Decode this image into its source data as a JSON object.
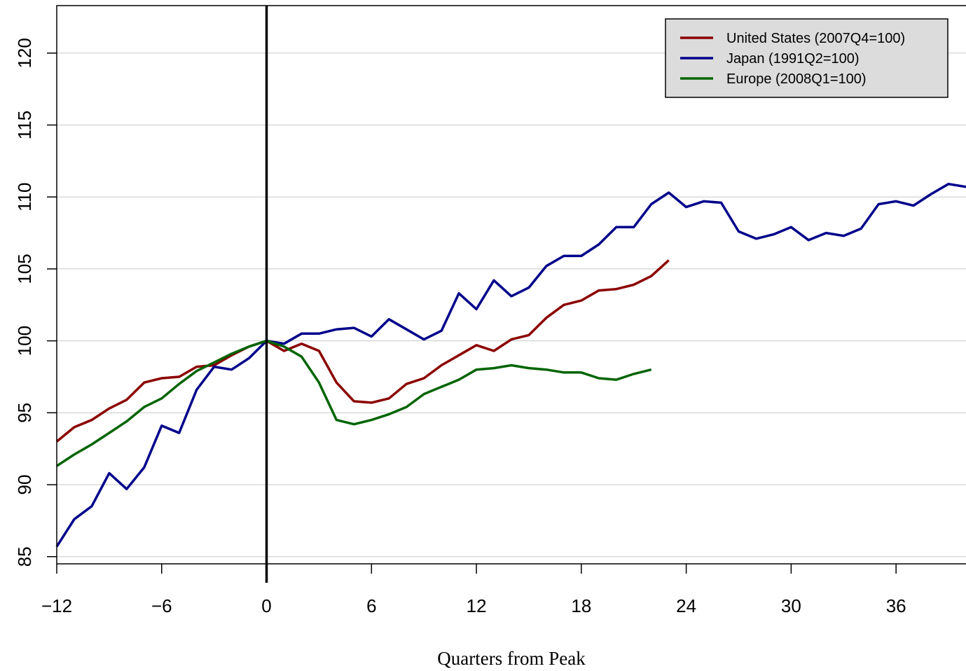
{
  "chart_data": {
    "type": "line",
    "title": "",
    "xlabel": "Quarters from Peak",
    "ylabel": "",
    "xlim": [
      -12,
      40
    ],
    "ylim": [
      84.5,
      123.3
    ],
    "x_ticks": [
      -12,
      -6,
      0,
      6,
      12,
      18,
      24,
      30,
      36
    ],
    "x_tick_labels": [
      "−12",
      "−6",
      "0",
      "6",
      "12",
      "18",
      "24",
      "30",
      "36"
    ],
    "y_ticks": [
      85,
      90,
      95,
      100,
      105,
      110,
      115,
      120
    ],
    "y_tick_labels": [
      "85",
      "90",
      "95",
      "100",
      "105",
      "110",
      "115",
      "120"
    ],
    "grid": "horizontal",
    "vertical_reference_line": 0,
    "legend_position": "top-right",
    "series": [
      {
        "name": "United States (2007Q4=100)",
        "color": "#8b0000",
        "x": [
          -12,
          -11,
          -10,
          -9,
          -8,
          -7,
          -6,
          -5,
          -4,
          -3,
          -2,
          -1,
          0,
          1,
          2,
          3,
          4,
          5,
          6,
          7,
          8,
          9,
          10,
          11,
          12,
          13,
          14,
          15,
          16,
          17,
          18,
          19,
          20,
          21,
          22,
          23
        ],
        "values": [
          93.0,
          94.0,
          94.5,
          95.3,
          95.9,
          97.1,
          97.4,
          97.5,
          98.2,
          98.3,
          99.0,
          99.6,
          100.0,
          99.3,
          99.8,
          99.3,
          97.1,
          95.8,
          95.7,
          96.0,
          97.0,
          97.4,
          98.3,
          99.0,
          99.7,
          99.3,
          100.1,
          100.4,
          101.6,
          102.5,
          102.8,
          103.5,
          103.6,
          103.9,
          104.5,
          105.6
        ]
      },
      {
        "name": "Japan (1991Q2=100)",
        "color": "#00008b",
        "x": [
          -12,
          -11,
          -10,
          -9,
          -8,
          -7,
          -6,
          -5,
          -4,
          -3,
          -2,
          -1,
          0,
          1,
          2,
          3,
          4,
          5,
          6,
          7,
          8,
          9,
          10,
          11,
          12,
          13,
          14,
          15,
          16,
          17,
          18,
          19,
          20,
          21,
          22,
          23,
          24,
          25,
          26,
          27,
          28,
          29,
          30,
          31,
          32,
          33,
          34,
          35,
          36,
          37,
          38,
          39,
          40
        ],
        "values": [
          85.7,
          87.6,
          88.5,
          90.8,
          89.7,
          91.2,
          94.1,
          93.6,
          96.6,
          98.2,
          98.0,
          98.8,
          100.0,
          99.8,
          100.5,
          100.5,
          100.8,
          100.9,
          100.3,
          101.5,
          100.8,
          100.1,
          100.7,
          103.3,
          102.2,
          104.2,
          103.1,
          103.7,
          105.2,
          105.9,
          105.9,
          106.7,
          107.9,
          107.9,
          109.5,
          110.3,
          109.3,
          109.7,
          109.6,
          107.6,
          107.1,
          107.4,
          107.9,
          107.0,
          107.5,
          107.3,
          107.8,
          109.5,
          109.7,
          109.4,
          110.2,
          110.9,
          110.7
        ]
      },
      {
        "name": "Europe (2008Q1=100)",
        "color": "#006400",
        "x": [
          -12,
          -11,
          -10,
          -9,
          -8,
          -7,
          -6,
          -5,
          -4,
          -3,
          -2,
          -1,
          0,
          1,
          2,
          3,
          4,
          5,
          6,
          7,
          8,
          9,
          10,
          11,
          12,
          13,
          14,
          15,
          16,
          17,
          18,
          19,
          20,
          21,
          22
        ],
        "values": [
          91.3,
          92.1,
          92.8,
          93.6,
          94.4,
          95.4,
          96.0,
          97.0,
          97.9,
          98.5,
          99.1,
          99.6,
          100.0,
          99.6,
          98.9,
          97.1,
          94.5,
          94.2,
          94.5,
          94.9,
          95.4,
          96.3,
          96.8,
          97.3,
          98.0,
          98.1,
          98.3,
          98.1,
          98.0,
          97.8,
          97.8,
          97.4,
          97.3,
          97.7,
          98.0
        ]
      }
    ]
  }
}
